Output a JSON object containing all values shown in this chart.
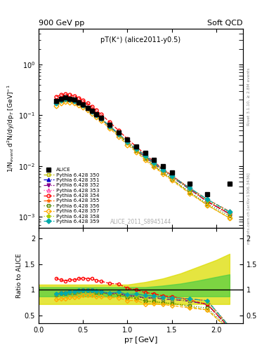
{
  "title_top": "900 GeV pp",
  "title_right": "Soft QCD",
  "plot_title": "pT(K⁺) (alice2011-y0.5)",
  "ylabel_main": "1/N$_{event}$ d$^{2}$N/dy/dp$_{T}$ [GeV]$^{-1}$",
  "ylabel_ratio": "Ratio to ALICE",
  "xlabel": "p$_{T}$ [GeV]",
  "right_label_top": "Rivet 3.1.10, ≥ 2.8M events",
  "right_label_bot": "mcplots.cern.ch [arXiv:1306.3436]",
  "watermark": "ALICE_2011_S8945144",
  "alice_pt": [
    0.2,
    0.25,
    0.3,
    0.35,
    0.4,
    0.45,
    0.5,
    0.55,
    0.6,
    0.65,
    0.7,
    0.8,
    0.9,
    1.0,
    1.1,
    1.2,
    1.3,
    1.4,
    1.5,
    1.7,
    1.9,
    2.15
  ],
  "alice_y": [
    0.19,
    0.21,
    0.22,
    0.21,
    0.2,
    0.18,
    0.16,
    0.14,
    0.12,
    0.105,
    0.09,
    0.065,
    0.045,
    0.033,
    0.024,
    0.018,
    0.013,
    0.01,
    0.0075,
    0.0045,
    0.0028,
    0.0045
  ],
  "series": [
    {
      "label": "Pythia 6.428 350",
      "color": "#bbbb00",
      "linestyle": "--",
      "marker": "s",
      "markerfill": "none",
      "pt": [
        0.2,
        0.25,
        0.3,
        0.35,
        0.4,
        0.45,
        0.5,
        0.55,
        0.6,
        0.65,
        0.7,
        0.8,
        0.9,
        1.0,
        1.1,
        1.2,
        1.3,
        1.4,
        1.5,
        1.7,
        1.9,
        2.15
      ],
      "y": [
        0.17,
        0.192,
        0.202,
        0.198,
        0.188,
        0.173,
        0.156,
        0.137,
        0.117,
        0.099,
        0.085,
        0.059,
        0.041,
        0.028,
        0.02,
        0.014,
        0.01,
        0.0074,
        0.0055,
        0.003,
        0.0017,
        0.00095
      ]
    },
    {
      "label": "Pythia 6.428 351",
      "color": "#0000cc",
      "linestyle": "-.",
      "marker": "^",
      "markerfill": "#0000cc",
      "pt": [
        0.2,
        0.25,
        0.3,
        0.35,
        0.4,
        0.45,
        0.5,
        0.55,
        0.6,
        0.65,
        0.7,
        0.8,
        0.9,
        1.0,
        1.1,
        1.2,
        1.3,
        1.4,
        1.5,
        1.7,
        1.9,
        2.15
      ],
      "y": [
        0.173,
        0.195,
        0.205,
        0.2,
        0.19,
        0.175,
        0.158,
        0.138,
        0.118,
        0.101,
        0.086,
        0.06,
        0.042,
        0.029,
        0.021,
        0.015,
        0.011,
        0.0082,
        0.0061,
        0.0035,
        0.002,
        0.00115
      ]
    },
    {
      "label": "Pythia 6.428 352",
      "color": "#880088",
      "linestyle": "-.",
      "marker": "v",
      "markerfill": "#880088",
      "pt": [
        0.2,
        0.25,
        0.3,
        0.35,
        0.4,
        0.45,
        0.5,
        0.55,
        0.6,
        0.65,
        0.7,
        0.8,
        0.9,
        1.0,
        1.1,
        1.2,
        1.3,
        1.4,
        1.5,
        1.7,
        1.9,
        2.15
      ],
      "y": [
        0.173,
        0.195,
        0.205,
        0.2,
        0.19,
        0.175,
        0.158,
        0.138,
        0.118,
        0.101,
        0.086,
        0.06,
        0.042,
        0.029,
        0.021,
        0.015,
        0.011,
        0.0082,
        0.0061,
        0.0035,
        0.002,
        0.00115
      ]
    },
    {
      "label": "Pythia 6.428 353",
      "color": "#ff44aa",
      "linestyle": ":",
      "marker": "^",
      "markerfill": "none",
      "pt": [
        0.2,
        0.25,
        0.3,
        0.35,
        0.4,
        0.45,
        0.5,
        0.55,
        0.6,
        0.65,
        0.7,
        0.8,
        0.9,
        1.0,
        1.1,
        1.2,
        1.3,
        1.4,
        1.5,
        1.7,
        1.9,
        2.15
      ],
      "y": [
        0.176,
        0.198,
        0.208,
        0.203,
        0.193,
        0.178,
        0.16,
        0.14,
        0.12,
        0.102,
        0.087,
        0.061,
        0.043,
        0.03,
        0.022,
        0.016,
        0.0115,
        0.0086,
        0.0064,
        0.0037,
        0.0022,
        0.00128
      ]
    },
    {
      "label": "Pythia 6.428 354",
      "color": "#ff0000",
      "linestyle": "--",
      "marker": "o",
      "markerfill": "none",
      "pt": [
        0.2,
        0.25,
        0.3,
        0.35,
        0.4,
        0.45,
        0.5,
        0.55,
        0.6,
        0.65,
        0.7,
        0.8,
        0.9,
        1.0,
        1.1,
        1.2,
        1.3,
        1.4,
        1.5,
        1.7,
        1.9,
        2.15
      ],
      "y": [
        0.232,
        0.25,
        0.258,
        0.251,
        0.238,
        0.219,
        0.196,
        0.17,
        0.146,
        0.124,
        0.105,
        0.073,
        0.05,
        0.034,
        0.024,
        0.017,
        0.012,
        0.0088,
        0.0065,
        0.0036,
        0.002,
        0.00115
      ]
    },
    {
      "label": "Pythia 6.428 355",
      "color": "#ff6600",
      "linestyle": "--",
      "marker": "*",
      "markerfill": "#ff6600",
      "pt": [
        0.2,
        0.25,
        0.3,
        0.35,
        0.4,
        0.45,
        0.5,
        0.55,
        0.6,
        0.65,
        0.7,
        0.8,
        0.9,
        1.0,
        1.1,
        1.2,
        1.3,
        1.4,
        1.5,
        1.7,
        1.9,
        2.15
      ],
      "y": [
        0.176,
        0.198,
        0.208,
        0.203,
        0.193,
        0.178,
        0.16,
        0.14,
        0.12,
        0.102,
        0.087,
        0.061,
        0.043,
        0.03,
        0.022,
        0.016,
        0.0115,
        0.0086,
        0.0064,
        0.0037,
        0.0022,
        0.00128
      ]
    },
    {
      "label": "Pythia 6.428 356",
      "color": "#558800",
      "linestyle": ":",
      "marker": "s",
      "markerfill": "none",
      "pt": [
        0.2,
        0.25,
        0.3,
        0.35,
        0.4,
        0.45,
        0.5,
        0.55,
        0.6,
        0.65,
        0.7,
        0.8,
        0.9,
        1.0,
        1.1,
        1.2,
        1.3,
        1.4,
        1.5,
        1.7,
        1.9,
        2.15
      ],
      "y": [
        0.173,
        0.195,
        0.205,
        0.2,
        0.19,
        0.175,
        0.158,
        0.138,
        0.118,
        0.1,
        0.085,
        0.059,
        0.041,
        0.028,
        0.02,
        0.014,
        0.01,
        0.0075,
        0.0055,
        0.0031,
        0.0018,
        0.00105
      ]
    },
    {
      "label": "Pythia 6.428 357",
      "color": "#ffaa00",
      "linestyle": "--",
      "marker": "D",
      "markerfill": "none",
      "pt": [
        0.2,
        0.25,
        0.3,
        0.35,
        0.4,
        0.45,
        0.5,
        0.55,
        0.6,
        0.65,
        0.7,
        0.8,
        0.9,
        1.0,
        1.1,
        1.2,
        1.3,
        1.4,
        1.5,
        1.7,
        1.9,
        2.15
      ],
      "y": [
        0.153,
        0.173,
        0.183,
        0.179,
        0.17,
        0.157,
        0.142,
        0.125,
        0.107,
        0.091,
        0.078,
        0.055,
        0.038,
        0.026,
        0.019,
        0.013,
        0.0095,
        0.0071,
        0.0052,
        0.0029,
        0.0017,
        0.00095
      ]
    },
    {
      "label": "Pythia 6.428 358",
      "color": "#aacc00",
      "linestyle": ":",
      "marker": "p",
      "markerfill": "#aacc00",
      "pt": [
        0.2,
        0.25,
        0.3,
        0.35,
        0.4,
        0.45,
        0.5,
        0.55,
        0.6,
        0.65,
        0.7,
        0.8,
        0.9,
        1.0,
        1.1,
        1.2,
        1.3,
        1.4,
        1.5,
        1.7,
        1.9,
        2.15
      ],
      "y": [
        0.173,
        0.195,
        0.205,
        0.2,
        0.19,
        0.175,
        0.158,
        0.138,
        0.118,
        0.101,
        0.086,
        0.06,
        0.042,
        0.029,
        0.021,
        0.015,
        0.011,
        0.0082,
        0.0061,
        0.0035,
        0.0021,
        0.0012
      ]
    },
    {
      "label": "Pythia 6.428 359",
      "color": "#00aaaa",
      "linestyle": "-.",
      "marker": "D",
      "markerfill": "#00aaaa",
      "pt": [
        0.2,
        0.25,
        0.3,
        0.35,
        0.4,
        0.45,
        0.5,
        0.55,
        0.6,
        0.65,
        0.7,
        0.8,
        0.9,
        1.0,
        1.1,
        1.2,
        1.3,
        1.4,
        1.5,
        1.7,
        1.9,
        2.15
      ],
      "y": [
        0.175,
        0.197,
        0.207,
        0.202,
        0.192,
        0.177,
        0.159,
        0.139,
        0.119,
        0.102,
        0.087,
        0.061,
        0.043,
        0.03,
        0.022,
        0.016,
        0.0115,
        0.0085,
        0.0063,
        0.0037,
        0.0022,
        0.00125
      ]
    }
  ],
  "band_x": [
    0.0,
    0.2,
    0.4,
    0.6,
    0.8,
    1.0,
    1.2,
    1.4,
    1.6,
    1.8,
    2.0,
    2.15
  ],
  "band_green_low": [
    0.87,
    0.87,
    0.87,
    0.87,
    0.87,
    0.87,
    0.87,
    0.87,
    0.87,
    0.87,
    0.87,
    0.87
  ],
  "band_green_high": [
    1.05,
    1.05,
    1.05,
    1.05,
    1.05,
    1.05,
    1.05,
    1.08,
    1.12,
    1.18,
    1.25,
    1.3
  ],
  "band_yellow_low": [
    0.72,
    0.72,
    0.72,
    0.72,
    0.72,
    0.72,
    0.72,
    0.72,
    0.72,
    0.72,
    0.72,
    0.72
  ],
  "band_yellow_high": [
    1.1,
    1.1,
    1.1,
    1.1,
    1.1,
    1.1,
    1.15,
    1.22,
    1.32,
    1.45,
    1.58,
    1.7
  ],
  "xlim": [
    0.0,
    2.3
  ],
  "ylim_main": [
    0.0006,
    5.0
  ],
  "ylim_ratio": [
    0.35,
    2.2
  ],
  "ratio_yticks": [
    0.5,
    1.0,
    1.5,
    2.0
  ],
  "ratio_yticklabels": [
    "0.5",
    "1",
    "1.5",
    "2"
  ]
}
